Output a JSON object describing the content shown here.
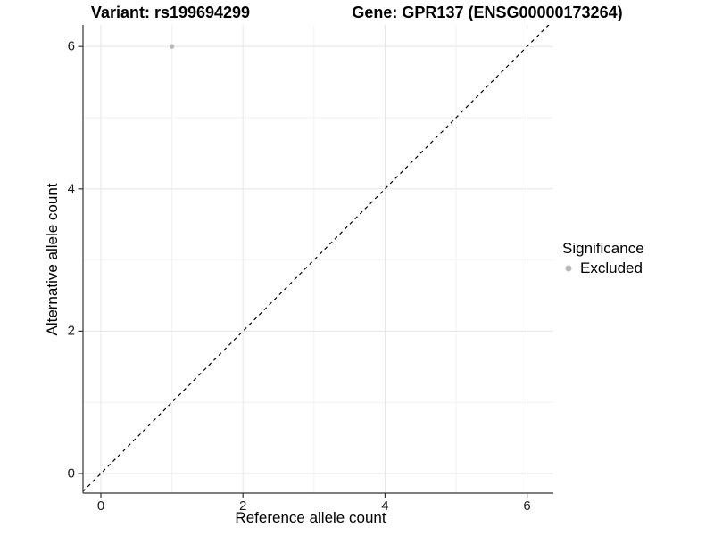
{
  "header": {
    "variant_title": "Variant: rs199694299",
    "gene_title": "Gene: GPR137 (ENSG00000173264)"
  },
  "legend": {
    "title": "Significance",
    "items": [
      {
        "label": "Excluded",
        "color": "#b9b9b9",
        "shape": "circle"
      }
    ]
  },
  "chart_data": {
    "type": "scatter",
    "title": "Variant: rs199694299 / Gene: GPR137 (ENSG00000173264)",
    "xlabel": "Reference allele count",
    "ylabel": "Alternative allele count",
    "xlim": [
      -0.27,
      6.37
    ],
    "ylim": [
      -0.28,
      6.3
    ],
    "x_ticks": [
      0,
      2,
      4,
      6
    ],
    "y_ticks": [
      0,
      2,
      4,
      6
    ],
    "x_minor_ticks": [
      1,
      3,
      5
    ],
    "y_minor_ticks": [
      1,
      3,
      5
    ],
    "grid": true,
    "legend_position": "right",
    "series": [
      {
        "name": "Excluded",
        "color": "#b9b9b9",
        "points": [
          {
            "x": 1,
            "y": 6
          }
        ]
      }
    ],
    "reference_line": {
      "slope": 1,
      "intercept": 0,
      "style": "dashed",
      "color": "#000000"
    }
  },
  "colors": {
    "background": "#ffffff",
    "grid_major": "#e6e6e6",
    "grid_minor": "#f2f2f2",
    "axis_line": "#333333",
    "tick_label": "#1a1a1a",
    "point": "#b9b9b9"
  }
}
